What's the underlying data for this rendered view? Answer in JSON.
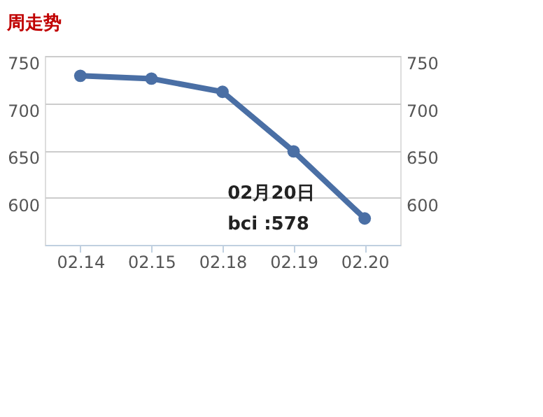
{
  "chart_data": {
    "type": "line",
    "title": "周走势",
    "categories": [
      "02.14",
      "02.15",
      "02.18",
      "02.19",
      "02.20"
    ],
    "series": [
      {
        "color": "#4a6fa5",
        "values": [
          729,
          726,
          712,
          649,
          578
        ]
      }
    ],
    "ylim": [
      550,
      750
    ],
    "yticks": [
      600,
      650,
      700,
      750
    ],
    "y2lim": [
      550,
      750
    ],
    "y2ticks": [
      600,
      650,
      700,
      750
    ],
    "grid": "y",
    "marker": "circle",
    "line_style": "solid",
    "legend": false,
    "annotations": [
      {
        "text": "02月20日\nbci :578",
        "x": "02.20",
        "y": 578
      }
    ]
  }
}
